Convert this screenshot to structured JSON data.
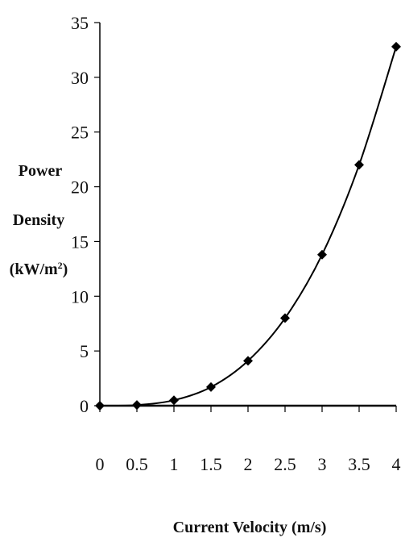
{
  "chart_data": {
    "type": "line",
    "title": "",
    "xlabel": "Current Velocity (m/s)",
    "ylabel": [
      "Power",
      "Density",
      "(kW/m",
      "2",
      ")"
    ],
    "xlim": [
      0,
      4
    ],
    "ylim": [
      0,
      35
    ],
    "xticks": [
      "0",
      "0.5",
      "1",
      "1.5",
      "2",
      "2.5",
      "3",
      "3.5",
      "4"
    ],
    "yticks": [
      "0",
      "5",
      "10",
      "15",
      "20",
      "25",
      "30",
      "35"
    ],
    "grid": false,
    "legend": "none",
    "series": [
      {
        "marker": "diamond",
        "color": "#000000",
        "x": [
          0,
          0.5,
          1,
          1.5,
          2,
          2.5,
          3,
          3.5,
          4
        ],
        "y": [
          0,
          0.06,
          0.5,
          1.7,
          4.1,
          8.0,
          13.8,
          22.0,
          32.8
        ]
      }
    ]
  }
}
